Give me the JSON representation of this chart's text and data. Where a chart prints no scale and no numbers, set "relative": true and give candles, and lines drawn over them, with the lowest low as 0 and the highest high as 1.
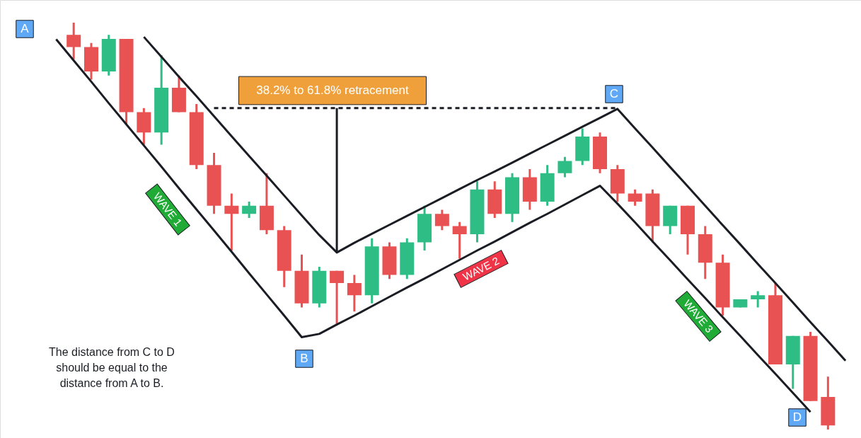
{
  "chart_data": {
    "type": "candlestick",
    "relative": true,
    "categories": [
      null,
      null,
      null,
      null,
      null,
      null,
      null,
      null,
      null,
      null,
      null,
      null,
      null,
      null,
      null,
      null,
      null,
      null,
      null,
      null,
      null,
      null,
      null,
      null,
      null,
      null,
      null,
      null,
      null,
      null,
      null,
      null,
      null,
      null,
      null,
      null,
      null,
      null,
      null,
      null,
      null,
      null,
      null,
      null,
      null,
      null,
      null
    ],
    "ohlc": [
      null,
      null,
      [
        0.97,
        1.0,
        0.91,
        0.94
      ],
      [
        0.94,
        0.95,
        0.86,
        0.88
      ],
      [
        0.88,
        0.97,
        0.87,
        0.96
      ],
      [
        0.96,
        0.96,
        0.75,
        0.78
      ],
      [
        0.78,
        0.79,
        0.7,
        0.73
      ],
      [
        0.73,
        0.92,
        0.7,
        0.84
      ],
      [
        0.84,
        0.87,
        0.78,
        0.78
      ],
      [
        0.78,
        0.8,
        0.64,
        0.65
      ],
      [
        0.65,
        0.68,
        0.53,
        0.55
      ],
      [
        0.55,
        0.58,
        0.44,
        0.53
      ],
      [
        0.53,
        0.56,
        0.52,
        0.55
      ],
      [
        0.55,
        0.63,
        0.48,
        0.49
      ],
      [
        0.49,
        0.5,
        0.35,
        0.39
      ],
      [
        0.39,
        0.43,
        0.3,
        0.31
      ],
      [
        0.31,
        0.4,
        0.3,
        0.39
      ],
      [
        0.39,
        0.39,
        0.26,
        0.36
      ],
      [
        0.36,
        0.38,
        0.29,
        0.33
      ],
      [
        0.33,
        0.47,
        0.31,
        0.45
      ],
      [
        0.45,
        0.46,
        0.37,
        0.38
      ],
      [
        0.38,
        0.47,
        0.37,
        0.46
      ],
      [
        0.46,
        0.55,
        0.44,
        0.53
      ],
      [
        0.53,
        0.54,
        0.49,
        0.5
      ],
      [
        0.5,
        0.51,
        0.42,
        0.48
      ],
      [
        0.48,
        0.61,
        0.46,
        0.59
      ],
      [
        0.59,
        0.61,
        0.52,
        0.53
      ],
      [
        0.53,
        0.63,
        0.51,
        0.62
      ],
      [
        0.62,
        0.64,
        0.54,
        0.56
      ],
      [
        0.56,
        0.65,
        0.55,
        0.63
      ],
      [
        0.63,
        0.67,
        0.62,
        0.66
      ],
      [
        0.66,
        0.74,
        0.65,
        0.72
      ],
      [
        0.72,
        0.73,
        0.63,
        0.64
      ],
      [
        0.64,
        0.65,
        0.56,
        0.58
      ],
      [
        0.58,
        0.59,
        0.55,
        0.56
      ],
      [
        0.58,
        0.59,
        0.46,
        0.5
      ],
      [
        0.5,
        0.55,
        0.48,
        0.55
      ],
      [
        0.55,
        0.55,
        0.43,
        0.48
      ],
      [
        0.48,
        0.5,
        0.37,
        0.41
      ],
      [
        0.41,
        0.43,
        0.28,
        0.3
      ],
      [
        0.3,
        0.32,
        0.3,
        0.32
      ],
      [
        0.32,
        0.34,
        0.3,
        0.33
      ],
      [
        0.33,
        0.36,
        0.16,
        0.16
      ],
      [
        0.16,
        0.23,
        0.1,
        0.23
      ],
      [
        0.23,
        0.24,
        0.07,
        0.07
      ],
      [
        0.08,
        0.13,
        0.0,
        0.01
      ],
      null
    ],
    "colors": [
      null,
      null,
      "#e85252",
      "#e85252",
      "#2ebd85",
      "#e85252",
      "#e85252",
      "#2ebd85",
      "#e85252",
      "#e85252",
      "#e85252",
      "#e85252",
      "#2ebd85",
      "#e85252",
      "#e85252",
      "#e85252",
      "#2ebd85",
      "#e85252",
      "#e85252",
      "#2ebd85",
      "#e85252",
      "#2ebd85",
      "#2ebd85",
      "#e85252",
      "#e85252",
      "#2ebd85",
      "#e85252",
      "#2ebd85",
      "#e85252",
      "#2ebd85",
      "#2ebd85",
      "#2ebd85",
      "#e85252",
      "#e85252",
      "#e85252",
      "#e85252",
      "#2ebd85",
      "#e85252",
      "#e85252",
      "#e85252",
      "#2ebd85",
      "#2ebd85",
      "#e85252",
      "#2ebd85",
      "#e85252",
      "#e85252",
      null
    ],
    "series": [
      {
        "type": "line",
        "color": "#1b1d24",
        "values": [
          null,
          0.959,
          0.907,
          0.855,
          0.802,
          0.75,
          0.698,
          0.646,
          0.593,
          0.541,
          0.489,
          0.437,
          0.384,
          0.332,
          0.28,
          0.227,
          0.235,
          0.258,
          0.28,
          0.303,
          0.326,
          0.349,
          0.371,
          0.394,
          0.417,
          0.44,
          0.462,
          0.485,
          0.508,
          0.53,
          0.553,
          0.576,
          0.599,
          0.555,
          0.509,
          0.462,
          0.416,
          0.369,
          0.323,
          0.276,
          0.23,
          0.183,
          0.137,
          0.09,
          0.043,
          null,
          null
        ]
      },
      {
        "type": "line",
        "color": "#1b1d24",
        "values": [
          null,
          null,
          null,
          null,
          null,
          null,
          0.965,
          0.916,
          0.867,
          0.819,
          0.77,
          0.721,
          0.672,
          0.624,
          0.575,
          0.526,
          0.478,
          0.435,
          0.459,
          0.481,
          0.503,
          0.525,
          0.547,
          0.569,
          0.591,
          0.613,
          0.634,
          0.656,
          0.678,
          0.7,
          0.722,
          0.744,
          0.766,
          0.788,
          0.74,
          0.693,
          0.645,
          0.598,
          0.55,
          0.502,
          0.455,
          0.407,
          0.36,
          0.312,
          0.264,
          0.217,
          0.169
        ]
      },
      {
        "type": "line",
        "color": "#1b1d24",
        "line_style": "dashed",
        "values": [
          null,
          null,
          null,
          null,
          null,
          null,
          null,
          null,
          null,
          null,
          0.79,
          0.79,
          0.79,
          0.79,
          0.79,
          0.79,
          0.79,
          0.79,
          0.79,
          0.79,
          0.79,
          0.79,
          0.79,
          0.79,
          0.79,
          0.79,
          0.79,
          0.79,
          0.79,
          0.79,
          0.79,
          0.79,
          0.79,
          0.79,
          null,
          null,
          null,
          null,
          null,
          null,
          null,
          null,
          null,
          null,
          null,
          null,
          null
        ]
      }
    ],
    "annotations": [
      "A",
      "B",
      "C",
      "D",
      "WAVE 1",
      "WAVE 2",
      "WAVE 3",
      "38.2% to 61.8% retracement",
      "The distance from C to D should be equal to the distance from A to B."
    ]
  }
}
